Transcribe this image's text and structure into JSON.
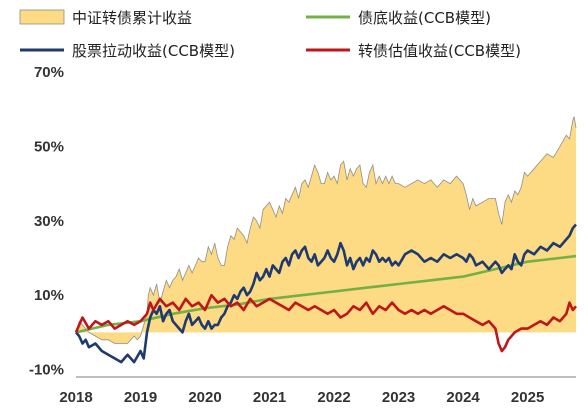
{
  "chart_data": {
    "type": "area",
    "title": "",
    "xlabel": "",
    "ylabel": "",
    "ylim": [
      -12,
      70
    ],
    "xlim": [
      2018.0,
      2025.75
    ],
    "y_ticks": [
      "70%",
      "50%",
      "30%",
      "10%",
      "-10%"
    ],
    "y_tick_values": [
      70,
      50,
      30,
      10,
      -10
    ],
    "x_ticks": [
      "2018",
      "2019",
      "2020",
      "2021",
      "2022",
      "2023",
      "2024",
      "2025"
    ],
    "x_tick_values": [
      2018,
      2019,
      2020,
      2021,
      2022,
      2023,
      2024,
      2025
    ],
    "grid": false,
    "legend_position": "top",
    "series": [
      {
        "name": "中证转债累计收益",
        "kind": "area",
        "color": "#FDDA84",
        "edge_color": "#8F8F8F",
        "x": [
          2018.0,
          2018.05,
          2018.1,
          2018.15,
          2018.2,
          2018.3,
          2018.4,
          2018.5,
          2018.6,
          2018.7,
          2018.8,
          2018.85,
          2018.9,
          2018.95,
          2019.0,
          2019.1,
          2019.12,
          2019.15,
          2019.2,
          2019.25,
          2019.3,
          2019.35,
          2019.4,
          2019.45,
          2019.5,
          2019.55,
          2019.6,
          2019.65,
          2019.7,
          2019.75,
          2019.8,
          2019.85,
          2019.9,
          2019.95,
          2020.0,
          2020.05,
          2020.1,
          2020.15,
          2020.2,
          2020.25,
          2020.3,
          2020.35,
          2020.4,
          2020.45,
          2020.5,
          2020.55,
          2020.6,
          2020.65,
          2020.7,
          2020.75,
          2020.8,
          2020.85,
          2020.9,
          2020.95,
          2021.0,
          2021.05,
          2021.1,
          2021.15,
          2021.2,
          2021.25,
          2021.3,
          2021.35,
          2021.4,
          2021.45,
          2021.5,
          2021.55,
          2021.6,
          2021.65,
          2021.7,
          2021.75,
          2021.8,
          2021.85,
          2021.9,
          2021.95,
          2022.0,
          2022.05,
          2022.1,
          2022.15,
          2022.2,
          2022.25,
          2022.3,
          2022.35,
          2022.4,
          2022.45,
          2022.5,
          2022.55,
          2022.6,
          2022.65,
          2022.7,
          2022.75,
          2022.8,
          2022.85,
          2022.9,
          2022.95,
          2023.0,
          2023.1,
          2023.2,
          2023.3,
          2023.4,
          2023.5,
          2023.6,
          2023.7,
          2023.8,
          2023.9,
          2024.0,
          2024.05,
          2024.1,
          2024.15,
          2024.2,
          2024.3,
          2024.4,
          2024.5,
          2024.55,
          2024.6,
          2024.65,
          2024.7,
          2024.75,
          2024.8,
          2024.85,
          2024.9,
          2024.95,
          2025.0,
          2025.1,
          2025.2,
          2025.3,
          2025.4,
          2025.5,
          2025.6,
          2025.65,
          2025.7,
          2025.72,
          2025.75
        ],
        "values": [
          0,
          3,
          2,
          1,
          0,
          -1,
          -2,
          -2,
          -3,
          -3,
          -3,
          -2,
          -1,
          -2,
          -1,
          5,
          10,
          12,
          10,
          13,
          8,
          11,
          14,
          12,
          14,
          15,
          17,
          14,
          16,
          18,
          16,
          18,
          20,
          19,
          19,
          23,
          21,
          24,
          20,
          18,
          18,
          23,
          26,
          25,
          28,
          27,
          26,
          24,
          28,
          31,
          30,
          28,
          33,
          34,
          35,
          33,
          31,
          34,
          32,
          36,
          35,
          37,
          39,
          36,
          40,
          41,
          39,
          42,
          45,
          43,
          40,
          40,
          43,
          41,
          42,
          40,
          45,
          46,
          41,
          44,
          42,
          44,
          45,
          40,
          39,
          43,
          45,
          40,
          42,
          40,
          42,
          40,
          42,
          40,
          40,
          39,
          40,
          41,
          40,
          41,
          39,
          41,
          40,
          42,
          40,
          37,
          33,
          36,
          34,
          35,
          36,
          36,
          32,
          29,
          35,
          37,
          35,
          38,
          37,
          39,
          43,
          42,
          44,
          46,
          48,
          47,
          50,
          53,
          52,
          57,
          58,
          55
        ]
      },
      {
        "name": "债底收益(CCB模型)",
        "kind": "line",
        "color": "#74B043",
        "x": [
          2018.0,
          2018.5,
          2019.0,
          2019.5,
          2020.0,
          2020.5,
          2021.0,
          2021.5,
          2022.0,
          2022.5,
          2023.0,
          2023.5,
          2024.0,
          2024.5,
          2025.0,
          2025.5,
          2025.75
        ],
        "values": [
          0,
          2,
          3,
          5,
          6.5,
          7.5,
          9,
          10,
          11,
          12,
          13,
          14,
          15,
          17,
          19,
          20,
          20.5
        ]
      },
      {
        "name": "股票拉动收益(CCB模型)",
        "kind": "line",
        "color": "#1F3A6E",
        "x": [
          2018.0,
          2018.05,
          2018.1,
          2018.15,
          2018.2,
          2018.3,
          2018.4,
          2018.5,
          2018.6,
          2018.7,
          2018.75,
          2018.8,
          2018.9,
          2019.0,
          2019.05,
          2019.1,
          2019.15,
          2019.2,
          2019.25,
          2019.3,
          2019.35,
          2019.4,
          2019.45,
          2019.5,
          2019.55,
          2019.6,
          2019.65,
          2019.7,
          2019.75,
          2019.8,
          2019.85,
          2019.9,
          2019.95,
          2020.0,
          2020.05,
          2020.1,
          2020.15,
          2020.2,
          2020.25,
          2020.3,
          2020.35,
          2020.4,
          2020.45,
          2020.5,
          2020.55,
          2020.6,
          2020.65,
          2020.7,
          2020.75,
          2020.8,
          2020.85,
          2020.9,
          2020.95,
          2021.0,
          2021.05,
          2021.1,
          2021.15,
          2021.2,
          2021.25,
          2021.3,
          2021.35,
          2021.4,
          2021.45,
          2021.5,
          2021.55,
          2021.6,
          2021.65,
          2021.7,
          2021.75,
          2021.8,
          2021.85,
          2021.9,
          2021.95,
          2022.0,
          2022.05,
          2022.1,
          2022.15,
          2022.2,
          2022.25,
          2022.3,
          2022.35,
          2022.4,
          2022.45,
          2022.5,
          2022.55,
          2022.6,
          2022.65,
          2022.7,
          2022.75,
          2022.8,
          2022.85,
          2022.9,
          2022.95,
          2023.0,
          2023.1,
          2023.2,
          2023.3,
          2023.4,
          2023.5,
          2023.6,
          2023.7,
          2023.8,
          2023.9,
          2024.0,
          2024.05,
          2024.1,
          2024.15,
          2024.2,
          2024.3,
          2024.4,
          2024.5,
          2024.55,
          2024.6,
          2024.65,
          2024.7,
          2024.75,
          2024.8,
          2024.85,
          2024.9,
          2024.95,
          2025.0,
          2025.1,
          2025.2,
          2025.3,
          2025.4,
          2025.5,
          2025.6,
          2025.65,
          2025.7,
          2025.75
        ],
        "values": [
          0,
          -1,
          -3,
          -2,
          -4,
          -3,
          -5,
          -6,
          -7,
          -8,
          -7,
          -6,
          -8,
          -5,
          -7,
          0,
          4,
          6,
          5,
          7,
          3,
          5,
          6,
          3,
          2,
          1,
          0,
          3,
          5,
          2,
          3,
          4,
          2,
          1,
          3,
          1,
          2,
          2,
          4,
          5,
          7,
          8,
          10,
          9,
          11,
          12,
          10,
          11,
          13,
          16,
          14,
          15,
          17,
          15,
          18,
          17,
          16,
          19,
          20,
          18,
          21,
          22,
          20,
          22,
          23,
          20,
          19,
          21,
          18,
          19,
          20,
          22,
          20,
          19,
          21,
          24,
          22,
          18,
          20,
          17,
          19,
          20,
          18,
          20,
          19,
          22,
          21,
          19,
          20,
          19,
          20,
          18,
          19,
          18,
          21,
          22,
          21,
          19,
          20,
          19,
          21,
          20,
          21,
          20,
          19,
          21,
          20,
          18,
          19,
          17,
          19,
          18,
          16,
          17,
          18,
          17,
          21,
          19,
          18,
          21,
          22,
          21,
          23,
          22,
          24,
          23,
          25,
          26,
          28,
          29
        ]
      },
      {
        "name": "转债估值收益(CCB模型)",
        "kind": "line",
        "color": "#C0161A",
        "x": [
          2018.0,
          2018.05,
          2018.1,
          2018.2,
          2018.3,
          2018.4,
          2018.5,
          2018.6,
          2018.7,
          2018.8,
          2018.9,
          2019.0,
          2019.1,
          2019.15,
          2019.2,
          2019.3,
          2019.4,
          2019.5,
          2019.6,
          2019.7,
          2019.8,
          2019.9,
          2020.0,
          2020.1,
          2020.2,
          2020.3,
          2020.4,
          2020.5,
          2020.6,
          2020.7,
          2020.8,
          2020.9,
          2021.0,
          2021.1,
          2021.2,
          2021.3,
          2021.4,
          2021.5,
          2021.6,
          2021.7,
          2021.8,
          2021.9,
          2022.0,
          2022.1,
          2022.2,
          2022.3,
          2022.4,
          2022.5,
          2022.6,
          2022.7,
          2022.8,
          2022.9,
          2023.0,
          2023.1,
          2023.2,
          2023.3,
          2023.4,
          2023.5,
          2023.6,
          2023.7,
          2023.8,
          2023.9,
          2024.0,
          2024.1,
          2024.2,
          2024.3,
          2024.4,
          2024.5,
          2024.55,
          2024.6,
          2024.65,
          2024.7,
          2024.75,
          2024.8,
          2024.9,
          2025.0,
          2025.1,
          2025.2,
          2025.3,
          2025.4,
          2025.5,
          2025.6,
          2025.65,
          2025.7,
          2025.75
        ],
        "values": [
          0,
          2,
          4,
          1,
          3,
          2,
          3,
          1,
          2,
          3,
          2,
          3,
          5,
          8,
          6,
          9,
          7,
          8,
          6,
          9,
          7,
          8,
          6,
          10,
          8,
          9,
          7,
          8,
          6,
          9,
          7,
          8,
          9,
          8,
          7,
          6,
          8,
          7,
          6,
          7,
          6,
          5,
          6,
          4,
          5,
          7,
          6,
          8,
          5,
          7,
          6,
          8,
          6,
          5,
          6,
          5,
          6,
          5,
          6,
          7,
          6,
          5,
          5,
          4,
          3,
          2,
          3,
          1,
          -3,
          -5,
          -4,
          -2,
          -1,
          0,
          1,
          1,
          2,
          3,
          2,
          4,
          3,
          5,
          8,
          6,
          7
        ]
      }
    ]
  }
}
